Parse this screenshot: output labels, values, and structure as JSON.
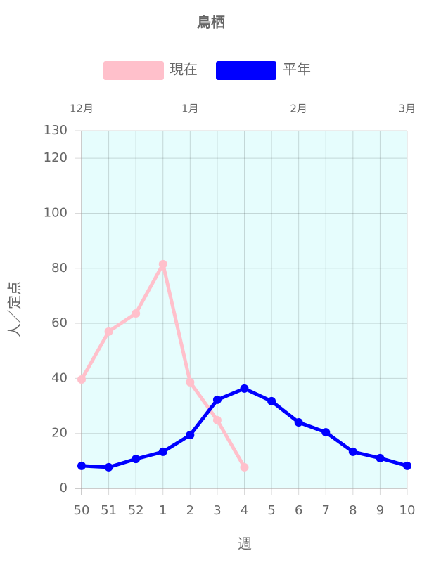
{
  "chart_data": {
    "type": "line",
    "title": "鳥栖",
    "categories": [
      "50",
      "51",
      "52",
      "1",
      "2",
      "3",
      "4",
      "5",
      "6",
      "7",
      "8",
      "9",
      "10"
    ],
    "series": [
      {
        "name": "現在",
        "color": "#ffc0cb",
        "values": [
          39.6,
          57,
          63.6,
          81.5,
          38.6,
          24.8,
          7.7,
          null,
          null,
          null,
          null,
          null,
          null
        ]
      },
      {
        "name": "平年",
        "color": "#0000ff",
        "values": [
          8.2,
          7.7,
          10.7,
          13.3,
          19.4,
          32.2,
          36.3,
          31.7,
          24,
          20.4,
          13.3,
          11,
          8.2
        ]
      }
    ],
    "month_labels": [
      "12月",
      "1月",
      "2月",
      "3月"
    ],
    "ylim": [
      0,
      130
    ],
    "yticks": [
      0,
      20,
      40,
      60,
      80,
      100,
      120,
      130
    ],
    "ylabel": "人／定点",
    "xlabel": "週",
    "grid": true,
    "legend": "top"
  }
}
